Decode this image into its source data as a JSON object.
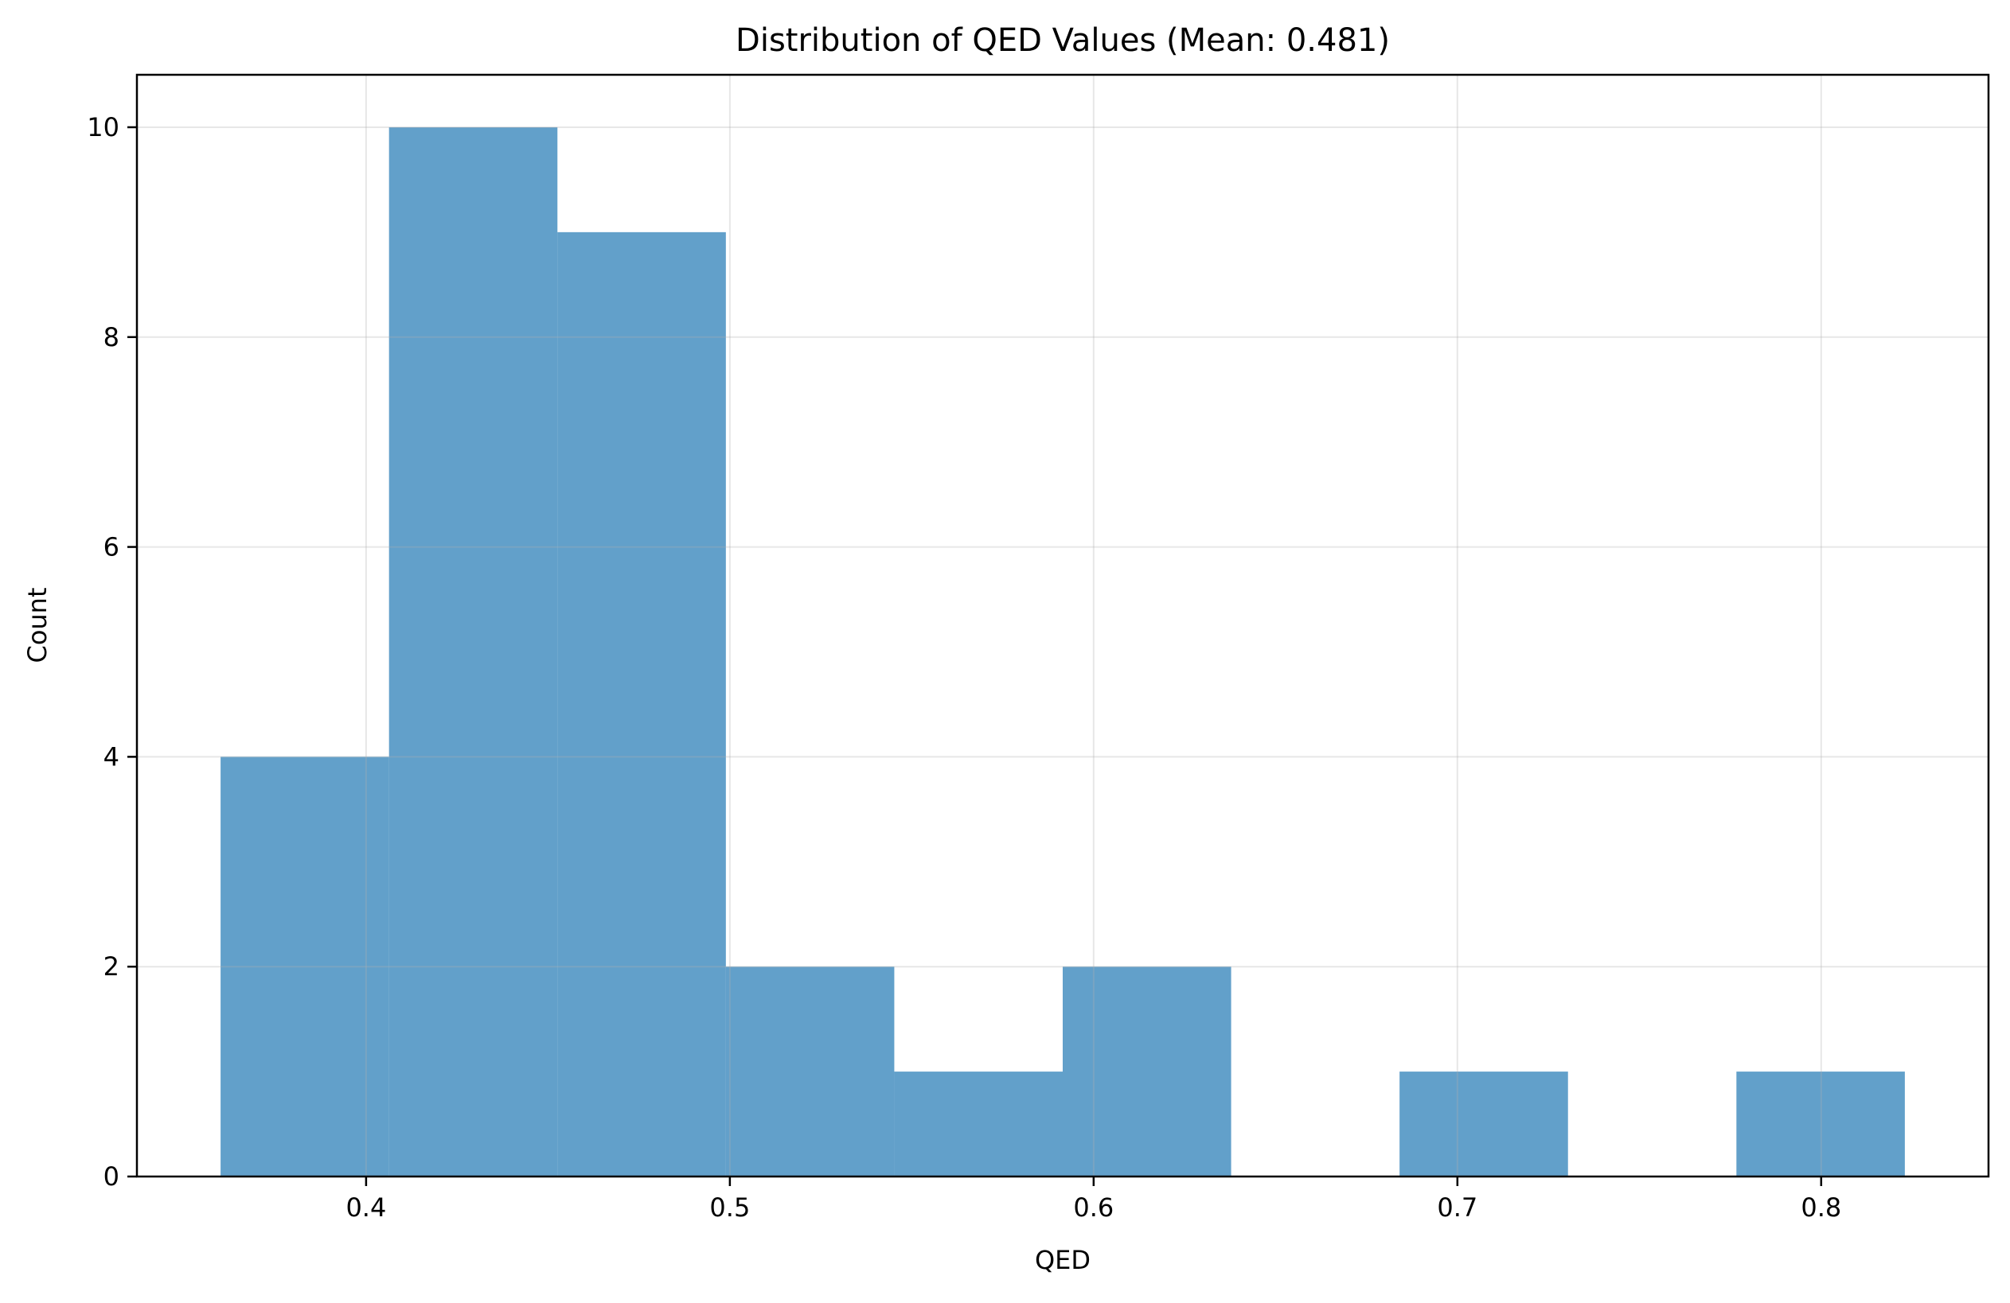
{
  "chart_data": {
    "type": "bar",
    "title": "Distribution of QED Values (Mean: 0.481)",
    "xlabel": "QED",
    "ylabel": "Count",
    "bins": [
      {
        "x0": 0.36,
        "x1": 0.4063,
        "count": 4
      },
      {
        "x0": 0.4063,
        "x1": 0.4526,
        "count": 10
      },
      {
        "x0": 0.4526,
        "x1": 0.4989,
        "count": 9
      },
      {
        "x0": 0.4989,
        "x1": 0.5452,
        "count": 2
      },
      {
        "x0": 0.5452,
        "x1": 0.5915,
        "count": 1
      },
      {
        "x0": 0.5915,
        "x1": 0.6378,
        "count": 2
      },
      {
        "x0": 0.6378,
        "x1": 0.6841,
        "count": 0
      },
      {
        "x0": 0.6841,
        "x1": 0.7304,
        "count": 1
      },
      {
        "x0": 0.7304,
        "x1": 0.7767,
        "count": 0
      },
      {
        "x0": 0.7767,
        "x1": 0.823,
        "count": 1
      }
    ],
    "xlim": [
      0.337,
      0.846
    ],
    "ylim": [
      0,
      10.5
    ],
    "xticks": [
      0.4,
      0.5,
      0.6,
      0.7,
      0.8
    ],
    "xtick_labels": [
      "0.4",
      "0.5",
      "0.6",
      "0.7",
      "0.8"
    ],
    "yticks": [
      0,
      2,
      4,
      6,
      8,
      10
    ],
    "ytick_labels": [
      "0",
      "2",
      "4",
      "6",
      "8",
      "10"
    ],
    "grid": true,
    "bar_color": "#1f77b4",
    "bar_alpha": 0.7
  }
}
